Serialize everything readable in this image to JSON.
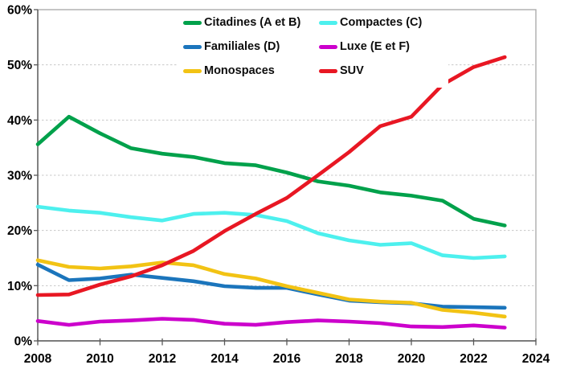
{
  "figure": {
    "background": "#FFFFFF",
    "plot_border_color": "#A6A6A6",
    "axis_line_color": "#595959",
    "gridline_color": "#C8C8C8",
    "tick_color": "#595959",
    "label_color": "#000000"
  },
  "chart_data": {
    "type": "line",
    "x": [
      2008,
      2009,
      2010,
      2011,
      2012,
      2013,
      2014,
      2015,
      2016,
      2017,
      2018,
      2019,
      2020,
      2021,
      2022,
      2023
    ],
    "series": [
      {
        "name": "Citadines (A et B)",
        "color": "#00A14B",
        "values": [
          35.6,
          40.6,
          37.6,
          34.9,
          33.9,
          33.3,
          32.2,
          31.8,
          30.5,
          28.9,
          28.1,
          26.9,
          26.3,
          25.4,
          22.1,
          20.9
        ]
      },
      {
        "name": "Compactes (C)",
        "color": "#4DF0EE",
        "values": [
          24.3,
          23.6,
          23.2,
          22.4,
          21.8,
          23.0,
          23.2,
          22.8,
          21.7,
          19.5,
          18.2,
          17.4,
          17.7,
          15.5,
          15.0,
          15.3
        ]
      },
      {
        "name": "Familiales (D)",
        "color": "#1B75BC",
        "values": [
          13.8,
          11.0,
          11.3,
          12.0,
          11.4,
          10.8,
          9.9,
          9.6,
          9.6,
          8.4,
          7.3,
          7.0,
          6.8,
          6.2,
          6.1,
          6.0
        ]
      },
      {
        "name": "Luxe (E et F)",
        "color": "#CC00CC",
        "values": [
          3.6,
          2.9,
          3.5,
          3.7,
          4.0,
          3.8,
          3.1,
          2.9,
          3.4,
          3.7,
          3.5,
          3.2,
          2.6,
          2.5,
          2.8,
          2.4
        ]
      },
      {
        "name": "Monospaces",
        "color": "#F2C314",
        "values": [
          14.6,
          13.4,
          13.1,
          13.5,
          14.2,
          13.7,
          12.1,
          11.3,
          9.9,
          8.7,
          7.5,
          7.1,
          6.9,
          5.6,
          5.1,
          4.4
        ]
      },
      {
        "name": "SUV",
        "color": "#E81723",
        "values": [
          8.3,
          8.4,
          10.2,
          11.7,
          13.7,
          16.3,
          19.9,
          23.0,
          25.9,
          30.0,
          34.2,
          38.9,
          40.6,
          46.4,
          49.6,
          51.4
        ]
      }
    ],
    "title": "",
    "xlabel": "",
    "ylabel": "",
    "xlim": [
      2008,
      2024
    ],
    "ylim": [
      0,
      60
    ],
    "x_ticks": [
      {
        "value": 2008,
        "label": "2008"
      },
      {
        "value": 2010,
        "label": "2010"
      },
      {
        "value": 2012,
        "label": "2012"
      },
      {
        "value": 2014,
        "label": "2014"
      },
      {
        "value": 2016,
        "label": "2016"
      },
      {
        "value": 2018,
        "label": "2018"
      },
      {
        "value": 2020,
        "label": "2020"
      },
      {
        "value": 2022,
        "label": "2022"
      },
      {
        "value": 2024,
        "label": "2024"
      }
    ],
    "y_ticks": [
      {
        "value": 0,
        "label": "0%"
      },
      {
        "value": 10,
        "label": "10%"
      },
      {
        "value": 20,
        "label": "20%"
      },
      {
        "value": 30,
        "label": "30%"
      },
      {
        "value": 40,
        "label": "40%"
      },
      {
        "value": 50,
        "label": "50%"
      },
      {
        "value": 60,
        "label": "60%"
      }
    ],
    "grid": "horizontal-dashed",
    "legend_position": "top-inside-two-columns",
    "line_width": 4.6
  }
}
